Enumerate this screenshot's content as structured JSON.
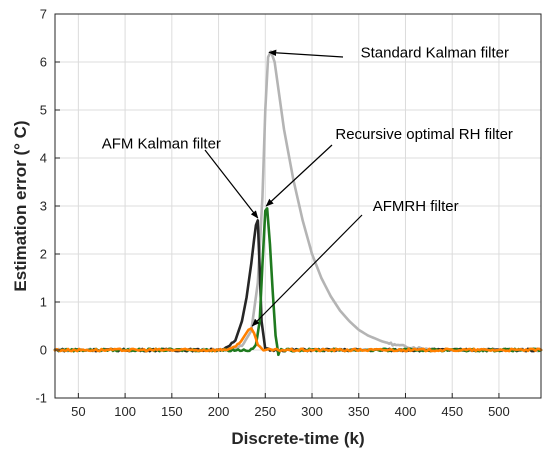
{
  "chart_data": {
    "type": "line",
    "title": "",
    "xlabel": "Discrete-time (k)",
    "ylabel": "Estimation error (° C)",
    "xlim": [
      25,
      545
    ],
    "ylim": [
      -1,
      7
    ],
    "xticks": [
      50,
      100,
      150,
      200,
      250,
      300,
      350,
      400,
      450,
      500
    ],
    "yticks": [
      -1,
      0,
      1,
      2,
      3,
      4,
      5,
      6,
      7
    ],
    "grid": true,
    "legend": "none",
    "series": [
      {
        "name": "Standard Kalman filter",
        "color": "#b4b4b4",
        "x": [
          25,
          200,
          215,
          225,
          235,
          242,
          247,
          250,
          253,
          256,
          260,
          265,
          270,
          280,
          290,
          300,
          310,
          320,
          330,
          340,
          350,
          360,
          375,
          390,
          405,
          420,
          440,
          545
        ],
        "y": [
          0,
          0,
          0.02,
          0.08,
          0.4,
          1.4,
          3.2,
          5.0,
          6.1,
          6.22,
          6.0,
          5.3,
          4.6,
          3.55,
          2.7,
          2.0,
          1.5,
          1.12,
          0.82,
          0.6,
          0.42,
          0.3,
          0.18,
          0.1,
          0.06,
          0.03,
          0.01,
          0
        ]
      },
      {
        "name": "AFM Kalman filter",
        "color": "#262626",
        "x": [
          25,
          200,
          210,
          218,
          225,
          230,
          235,
          238,
          240,
          242,
          244,
          246,
          250,
          255,
          545
        ],
        "y": [
          0,
          0,
          0.05,
          0.2,
          0.6,
          1.1,
          1.8,
          2.3,
          2.6,
          2.7,
          1.7,
          0.6,
          0.02,
          0,
          0
        ]
      },
      {
        "name": "Recursive optimal RH filter",
        "color": "#1f7a1f",
        "x": [
          25,
          235,
          240,
          244,
          247,
          250,
          252,
          255,
          258,
          261,
          264,
          267,
          545
        ],
        "y": [
          0,
          0,
          0.1,
          0.6,
          1.8,
          2.9,
          2.95,
          2.2,
          1.2,
          0.3,
          -0.08,
          0,
          0
        ]
      },
      {
        "name": "AFMRH filter",
        "color": "#ff8000",
        "x": [
          25,
          200,
          215,
          222,
          228,
          232,
          235,
          238,
          242,
          246,
          250,
          545
        ],
        "y": [
          0,
          0,
          0.03,
          0.12,
          0.3,
          0.42,
          0.45,
          0.35,
          0.12,
          0.01,
          0,
          0
        ]
      }
    ],
    "annotations": [
      {
        "text": "Standard Kalman filter",
        "x": 352,
        "y": 6.2,
        "arrow_to": [
          254,
          6.2
        ]
      },
      {
        "text": "Recursive optimal RH filter",
        "x": 325,
        "y": 4.5,
        "arrow_to": [
          251,
          3.0
        ]
      },
      {
        "text": "AFM Kalman filter",
        "x": 75,
        "y": 4.3,
        "arrow_to": [
          242,
          2.75
        ]
      },
      {
        "text": "AFMRH filter",
        "x": 365,
        "y": 3.0,
        "arrow_to": [
          236,
          0.5
        ]
      }
    ]
  }
}
